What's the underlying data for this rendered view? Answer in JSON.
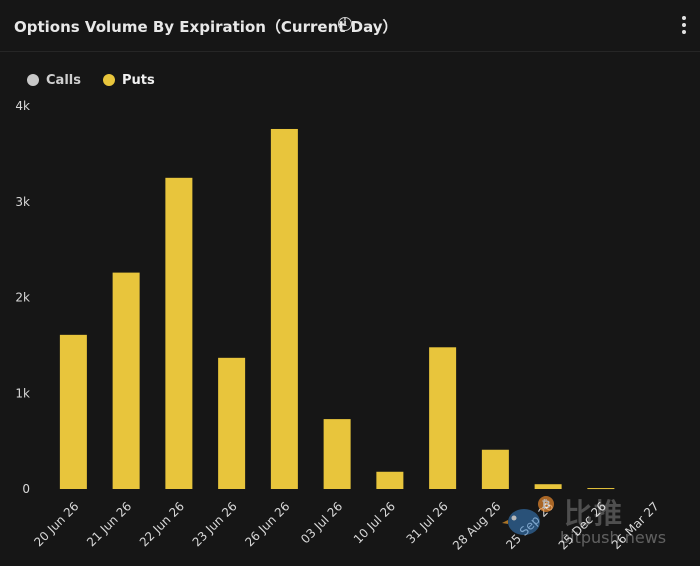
{
  "header": {
    "title": "Options Volume By Expiration（Current Day）",
    "info_icon": "info-icon",
    "menu_icon": "more-vertical-icon"
  },
  "legend": {
    "items": [
      {
        "label": "Calls",
        "color": "#c8c8c8"
      },
      {
        "label": "Puts",
        "color": "#e8c53c"
      }
    ]
  },
  "watermark": {
    "chinese": "比推",
    "english": "bitpush.news"
  },
  "chart_data": {
    "type": "bar",
    "categories": [
      "20 Jun 26",
      "21 Jun 26",
      "22 Jun 26",
      "23 Jun 26",
      "26 Jun 26",
      "03 Jul 26",
      "10 Jul 26",
      "31 Jul 26",
      "28 Aug 26",
      "25 Sep 26",
      "25 Dec 26",
      "26 Mar 27"
    ],
    "series": [
      {
        "name": "Calls",
        "color": "#c8c8c8",
        "values": [
          0,
          0,
          0,
          0,
          0,
          0,
          0,
          0,
          0,
          0,
          0,
          0
        ]
      },
      {
        "name": "Puts",
        "color": "#e8c53c",
        "values": [
          1610,
          2260,
          3250,
          1370,
          3760,
          730,
          180,
          1480,
          410,
          50,
          10,
          0
        ]
      }
    ],
    "yticks": [
      0,
      1000,
      2000,
      3000,
      4000
    ],
    "ytick_labels": [
      "0",
      "1k",
      "2k",
      "3k",
      "4k"
    ],
    "ylim": [
      0,
      4000
    ],
    "grid": false,
    "legend_position": "top-left"
  }
}
